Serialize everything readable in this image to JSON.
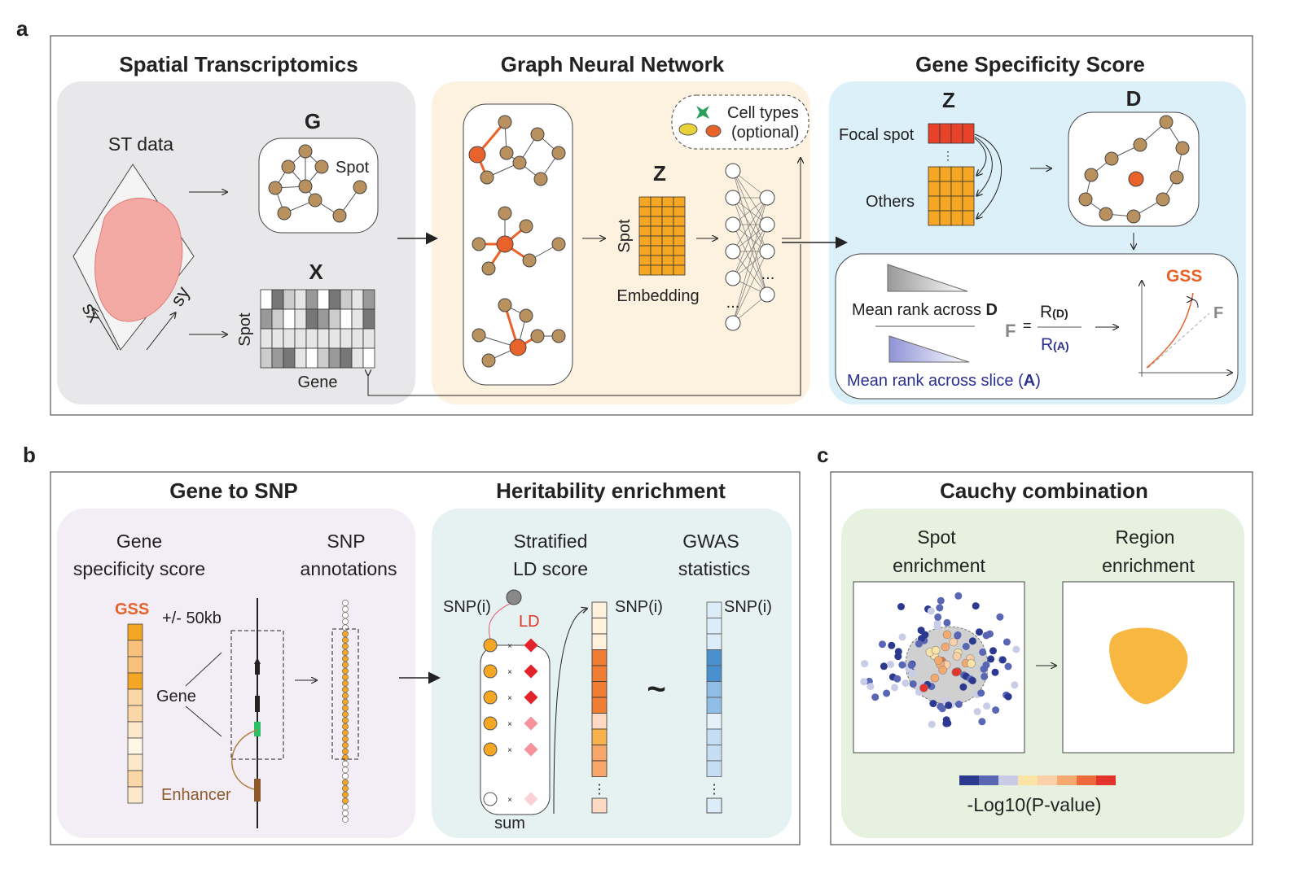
{
  "panel_a": {
    "label": "a",
    "spatial": {
      "title": "Spatial Transcriptomics",
      "st_data": "ST data",
      "sx": "sx",
      "sy": "sy",
      "g": "G",
      "spot_node": "Spot",
      "x": "X",
      "spot_axis": "Spot",
      "gene_axis": "Gene"
    },
    "gnn": {
      "title": "Graph Neural Network",
      "z": "Z",
      "spot_axis": "Spot",
      "embedding": "Embedding",
      "cell_types_1": "Cell types",
      "cell_types_2": "(optional)",
      "ellipsis": "..."
    },
    "gss": {
      "title": "Gene Specificity Score",
      "z": "Z",
      "d": "D",
      "focal_spot": "Focal spot",
      "others": "Others",
      "mean_rank_d": "Mean rank across ",
      "d_bold": "D",
      "mean_rank_a": "Mean rank across slice (",
      "a_bold": "A",
      "close_paren": ")",
      "f": "F",
      "equals": "=",
      "r_d": "R",
      "r_d_sub": "(D)",
      "r_a": "R",
      "r_a_sub": "(A)",
      "gss_label": "GSS",
      "f_line": "F"
    }
  },
  "panel_b": {
    "label": "b",
    "gene_to_snp": {
      "title": "Gene to SNP",
      "col1_l1": "Gene",
      "col1_l2": "specificity score",
      "col2_l1": "SNP",
      "col2_l2": "annotations",
      "gss": "GSS",
      "window": "+/- 50kb",
      "gene": "Gene",
      "enhancer": "Enhancer"
    },
    "heritability": {
      "title": "Heritability enrichment",
      "col1_l1": "Stratified",
      "col1_l2": "LD score",
      "col2_l1": "GWAS",
      "col2_l2": "statistics",
      "snp_i": "SNP(i)",
      "ld": "LD",
      "sum": "sum",
      "tilde": "~",
      "times": "×"
    }
  },
  "panel_c": {
    "label": "c",
    "title": "Cauchy combination",
    "spot_l1": "Spot",
    "spot_l2": "enrichment",
    "region_l1": "Region",
    "region_l2": "enrichment",
    "colorbar_label": "-Log10(P-value)",
    "colorbar_colors": [
      "#2b3a8f",
      "#5866b3",
      "#c9cce6",
      "#fbe3a6",
      "#fbd0a8",
      "#f6a96f",
      "#ee6a3a",
      "#e2342a"
    ]
  },
  "colors": {
    "orange": "#f5a623",
    "node": "#b8915f",
    "accent": "#e8622a",
    "navy": "#2b2f8f"
  }
}
